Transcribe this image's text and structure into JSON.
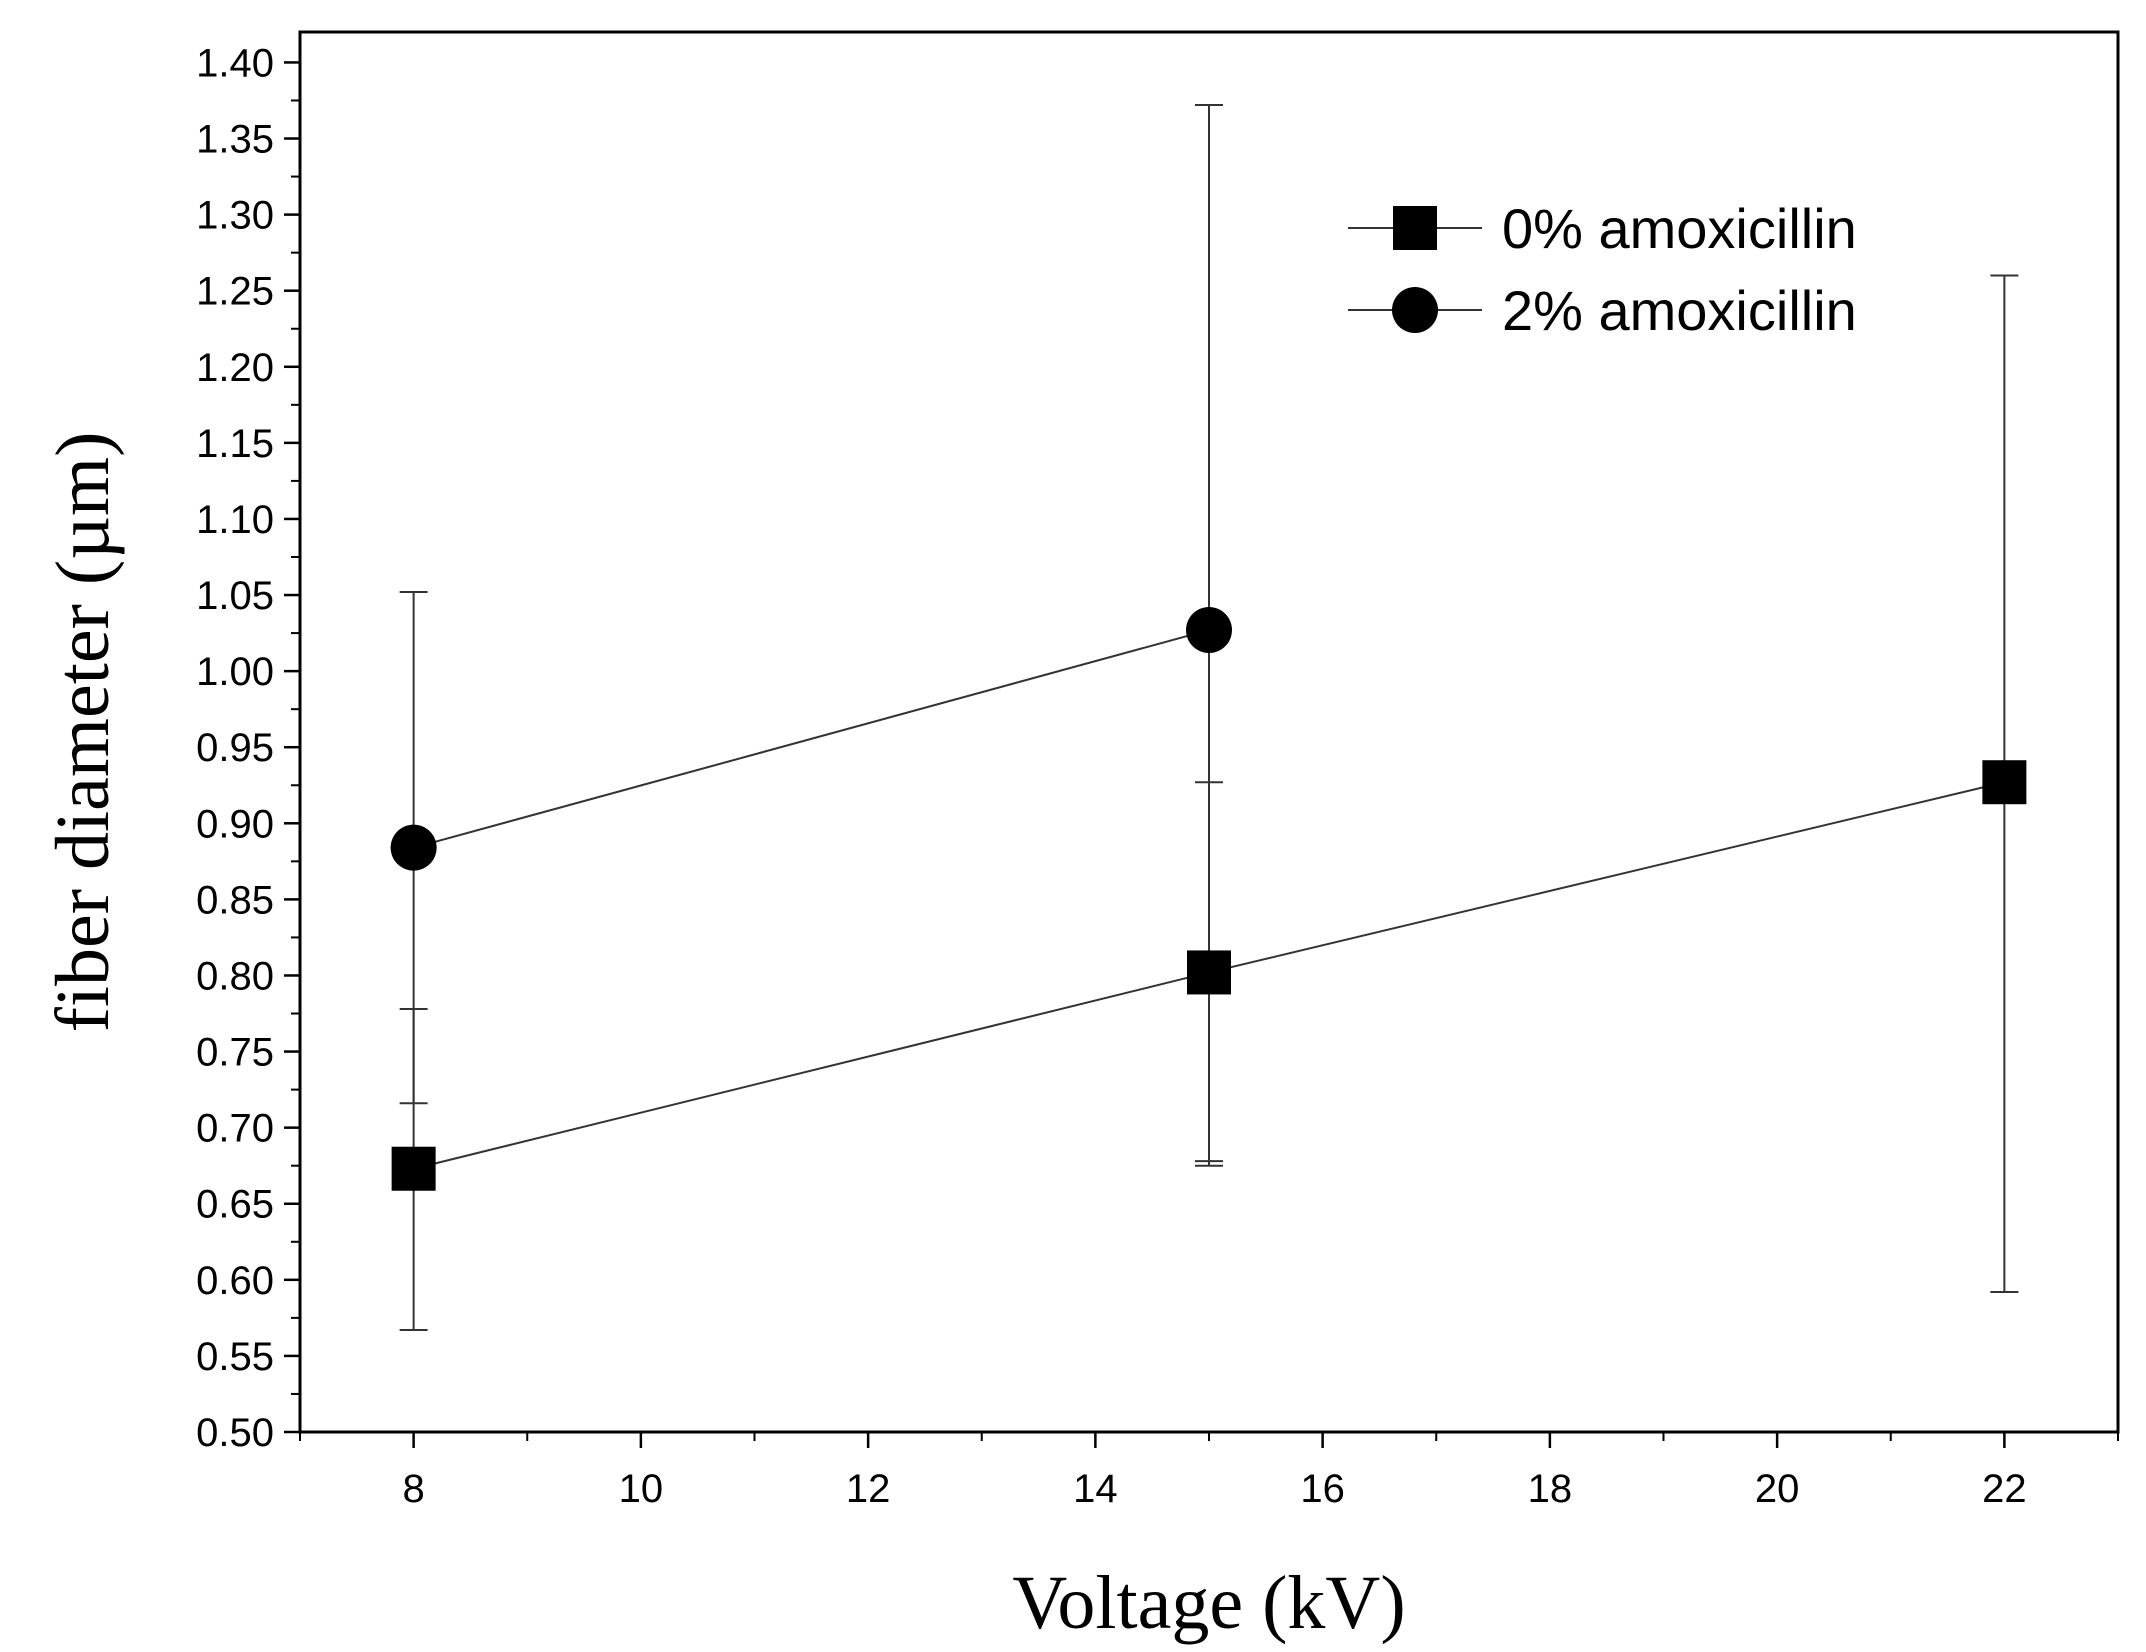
{
  "chart_data": {
    "type": "line",
    "title": "",
    "xlabel": "Voltage (kV)",
    "ylabel": "fiber diameter (µm)",
    "xlim": [
      7,
      23
    ],
    "ylim": [
      0.5,
      1.42
    ],
    "x_ticks": [
      8,
      10,
      12,
      14,
      16,
      18,
      20,
      22
    ],
    "x_tick_labels": [
      "8",
      "10",
      "12",
      "14",
      "16",
      "18",
      "20",
      "22"
    ],
    "y_ticks": [
      0.5,
      0.55,
      0.6,
      0.65,
      0.7,
      0.75,
      0.8,
      0.85,
      0.9,
      0.95,
      1.0,
      1.05,
      1.1,
      1.15,
      1.2,
      1.25,
      1.3,
      1.35,
      1.4
    ],
    "y_tick_labels": [
      "0.50",
      "0.55",
      "0.60",
      "0.65",
      "0.70",
      "0.75",
      "0.80",
      "0.85",
      "0.90",
      "0.95",
      "1.00",
      "1.05",
      "1.10",
      "1.15",
      "1.20",
      "1.25",
      "1.30",
      "1.35",
      "1.40"
    ],
    "grid": false,
    "legend_position": "top-right",
    "series": [
      {
        "name": "0% amoxicillin",
        "marker": "square",
        "x": [
          8,
          15,
          22
        ],
        "y": [
          0.673,
          0.802,
          0.927
        ],
        "err_low": [
          0.567,
          0.678,
          0.592
        ],
        "err_high": [
          0.778,
          0.927,
          1.26
        ]
      },
      {
        "name": "2% amoxicillin",
        "marker": "circle",
        "x": [
          8,
          15
        ],
        "y": [
          0.884,
          1.027
        ],
        "err_low": [
          0.716,
          0.675
        ],
        "err_high": [
          1.052,
          1.372
        ]
      }
    ]
  }
}
